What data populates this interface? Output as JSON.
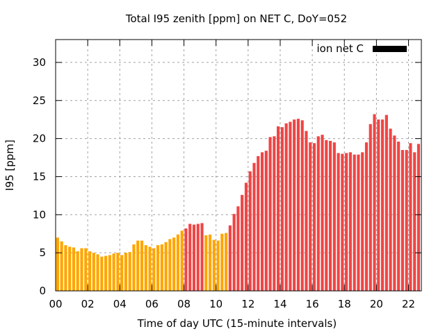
{
  "chart_data": {
    "type": "bar",
    "title": "Total I95 zenith [ppm] on NET C, DoY=052",
    "xlabel": "Time of day UTC (15-minute intervals)",
    "ylabel": "I95 [ppm]",
    "xlim": [
      0,
      22.8
    ],
    "ylim": [
      0,
      33
    ],
    "grid": true,
    "x_ticks": [
      0,
      2,
      4,
      6,
      8,
      10,
      12,
      14,
      16,
      18,
      20,
      22
    ],
    "x_tick_labels": [
      "00",
      "02",
      "04",
      "06",
      "08",
      "10",
      "12",
      "14",
      "16",
      "18",
      "20",
      "22"
    ],
    "y_ticks": [
      0,
      5,
      10,
      15,
      20,
      25,
      30
    ],
    "y_tick_labels": [
      "0",
      "5",
      "10",
      "15",
      "20",
      "25",
      "30"
    ],
    "bar_interval_hours": 0.25,
    "legend": {
      "label": "ion net C",
      "color": "#000000",
      "placement": "top-right"
    },
    "colors": {
      "low": "#ffa500",
      "high": "#f04545"
    },
    "values": [
      7.0,
      6.5,
      6.0,
      5.8,
      5.7,
      5.2,
      5.6,
      5.6,
      5.2,
      5.0,
      4.8,
      4.5,
      4.6,
      4.7,
      4.9,
      5.0,
      4.7,
      5.0,
      5.1,
      6.1,
      6.6,
      6.6,
      6.0,
      5.8,
      5.6,
      6.0,
      6.1,
      6.4,
      6.8,
      7.0,
      7.4,
      7.9,
      8.2,
      8.8,
      8.7,
      8.8,
      8.9,
      7.3,
      7.4,
      6.7,
      6.6,
      7.5,
      7.6,
      8.6,
      10.1,
      11.1,
      12.6,
      14.2,
      15.7,
      16.8,
      17.7,
      18.2,
      18.4,
      20.2,
      20.3,
      21.6,
      21.5,
      22.0,
      22.2,
      22.5,
      22.6,
      22.4,
      21.0,
      19.5,
      19.4,
      20.3,
      20.5,
      19.8,
      19.7,
      19.5,
      18.1,
      18.0,
      18.1,
      18.2,
      17.9,
      17.9,
      18.2,
      19.5,
      21.9,
      23.2,
      22.5,
      22.5,
      23.1,
      21.3,
      20.4,
      19.6,
      18.5,
      18.5,
      19.4,
      18.2,
      19.3
    ],
    "bar_color_class": [
      "low",
      "low",
      "low",
      "low",
      "low",
      "low",
      "low",
      "low",
      "low",
      "low",
      "low",
      "low",
      "low",
      "low",
      "low",
      "low",
      "low",
      "low",
      "low",
      "low",
      "low",
      "low",
      "low",
      "low",
      "low",
      "low",
      "low",
      "low",
      "low",
      "low",
      "low",
      "low",
      "high",
      "high",
      "high",
      "high",
      "high",
      "low",
      "low",
      "low",
      "low",
      "low",
      "low",
      "high",
      "high",
      "high",
      "high",
      "high",
      "high",
      "high",
      "high",
      "high",
      "high",
      "high",
      "high",
      "high",
      "high",
      "high",
      "high",
      "high",
      "high",
      "high",
      "high",
      "high",
      "high",
      "high",
      "high",
      "high",
      "high",
      "high",
      "high",
      "high",
      "high",
      "high",
      "high",
      "high",
      "high",
      "high",
      "high",
      "high",
      "high",
      "high",
      "high",
      "high",
      "high",
      "high",
      "high",
      "high",
      "high",
      "high",
      "high"
    ]
  }
}
